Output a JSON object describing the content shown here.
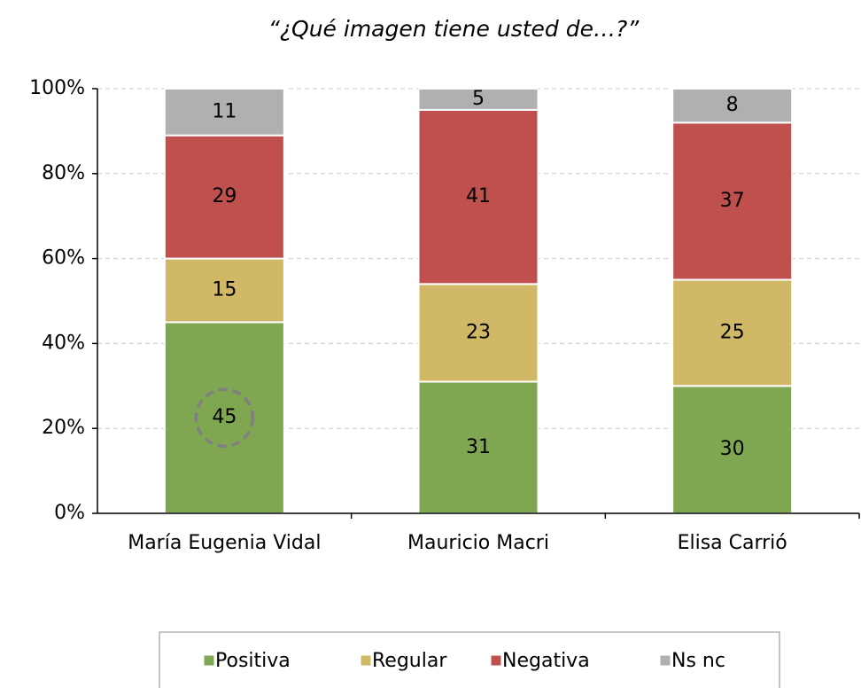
{
  "chart_data": {
    "type": "stacked_bar",
    "title": "“¿Qué imagen tiene usted de…?”",
    "categories": [
      "María Eugenia Vidal",
      "Mauricio Macri",
      "Elisa Carrió"
    ],
    "series": [
      {
        "name": "Positiva",
        "color": "#7fa650",
        "values": [
          45,
          31,
          30
        ]
      },
      {
        "name": "Regular",
        "color": "#d1b866",
        "values": [
          15,
          23,
          25
        ]
      },
      {
        "name": "Negativa",
        "color": "#c0504d",
        "values": [
          29,
          41,
          37
        ]
      },
      {
        "name": "Ns nc",
        "color": "#b0b0b0",
        "values": [
          11,
          5,
          8
        ]
      }
    ],
    "ylim": [
      0,
      100
    ],
    "yticks": [
      {
        "value": 0,
        "label": "0%"
      },
      {
        "value": 20,
        "label": "20%"
      },
      {
        "value": 40,
        "label": "40%"
      },
      {
        "value": 60,
        "label": "60%"
      },
      {
        "value": 80,
        "label": "80%"
      },
      {
        "value": 100,
        "label": "100%"
      }
    ],
    "grid": true,
    "legend": "bottom"
  }
}
